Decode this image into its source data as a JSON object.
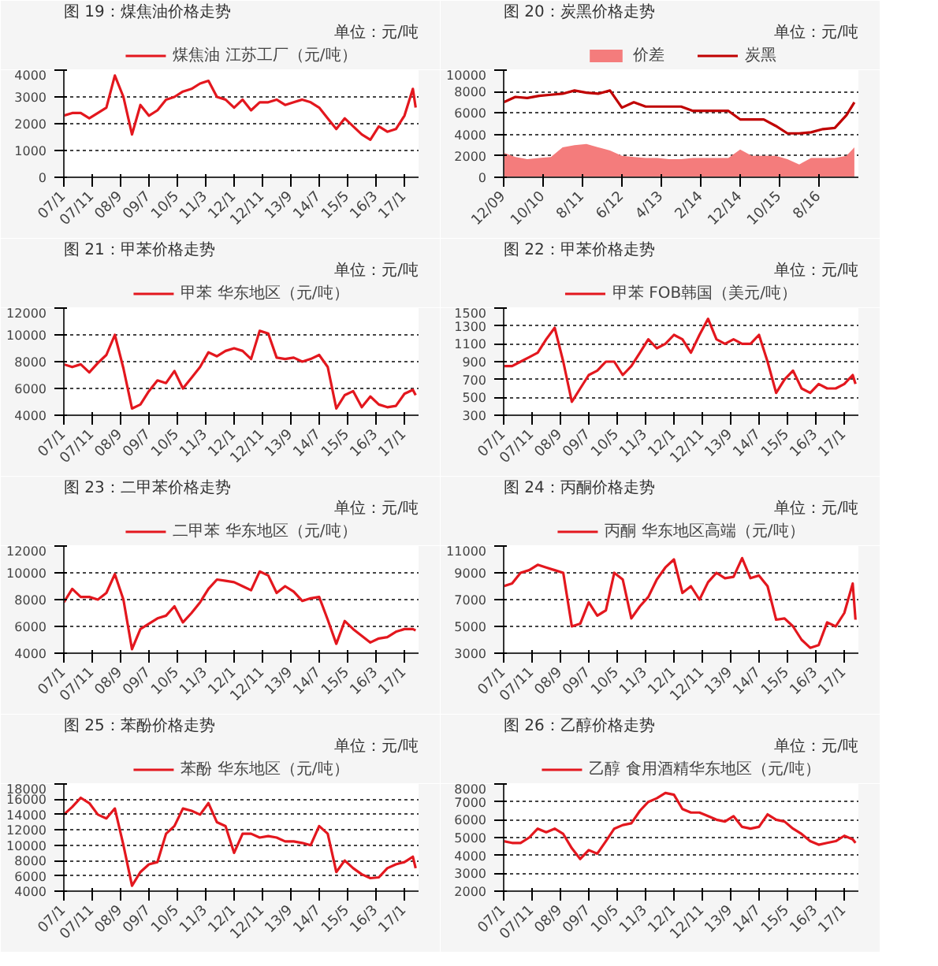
{
  "chart_data": [
    {
      "type": "line",
      "title": "图 19：煤焦油价格走势",
      "subtitle": "单位：元/吨",
      "legend": "top",
      "grid": "y",
      "x": [
        "2007-01",
        "2007-04",
        "2007-07",
        "2007-10",
        "2008-01",
        "2008-04",
        "2008-07",
        "2008-10",
        "2009-01",
        "2009-04",
        "2009-07",
        "2009-10",
        "2010-01",
        "2010-04",
        "2010-07",
        "2010-10",
        "2011-01",
        "2011-04",
        "2011-07",
        "2011-10",
        "2012-01",
        "2012-04",
        "2012-07",
        "2012-10",
        "2013-01",
        "2013-04",
        "2013-07",
        "2013-10",
        "2014-01",
        "2014-04",
        "2014-07",
        "2014-10",
        "2015-01",
        "2015-04",
        "2015-07",
        "2015-10",
        "2016-01",
        "2016-04",
        "2016-07",
        "2016-10",
        "2017-01",
        "2017-04",
        "2017-05"
      ],
      "xlim": [
        "2007-01",
        "2017-06"
      ],
      "xticks": [
        {
          "value": "2007-01",
          "label": "07/1"
        },
        {
          "value": "2007-11",
          "label": "07/11"
        },
        {
          "value": "2008-09",
          "label": "08/9"
        },
        {
          "value": "2009-07",
          "label": "09/7"
        },
        {
          "value": "2010-05",
          "label": "10/5"
        },
        {
          "value": "2011-03",
          "label": "11/3"
        },
        {
          "value": "2012-01",
          "label": "12/1"
        },
        {
          "value": "2012-11",
          "label": "12/11"
        },
        {
          "value": "2013-09",
          "label": "13/9"
        },
        {
          "value": "2014-07",
          "label": "14/7"
        },
        {
          "value": "2015-05",
          "label": "15/5"
        },
        {
          "value": "2016-03",
          "label": "16/3"
        },
        {
          "value": "2017-01",
          "label": "17/1"
        }
      ],
      "ylim": [
        0,
        4000
      ],
      "yticks": [
        0,
        1000,
        2000,
        3000,
        4000
      ],
      "series": [
        {
          "name": "煤焦油 江苏工厂（元/吨）",
          "color": "#e3171e",
          "values": [
            2300,
            2400,
            2400,
            2200,
            2400,
            2600,
            3800,
            3000,
            1600,
            2700,
            2300,
            2500,
            2900,
            3000,
            3200,
            3300,
            3500,
            3600,
            3000,
            2900,
            2600,
            2900,
            2500,
            2800,
            2800,
            2900,
            2700,
            2800,
            2900,
            2800,
            2600,
            2200,
            1800,
            2200,
            1900,
            1600,
            1400,
            1900,
            1700,
            1800,
            2300,
            3300,
            2600
          ]
        }
      ]
    },
    {
      "type": "line",
      "title": "图 20：炭黑价格走势",
      "subtitle": "单位：元/吨",
      "legend": "top",
      "grid": "y",
      "x": [
        "2009-12",
        "2010-03",
        "2010-06",
        "2010-09",
        "2010-12",
        "2011-03",
        "2011-06",
        "2011-09",
        "2011-12",
        "2012-03",
        "2012-06",
        "2012-09",
        "2012-12",
        "2013-03",
        "2013-06",
        "2013-09",
        "2013-12",
        "2014-03",
        "2014-06",
        "2014-09",
        "2014-12",
        "2015-03",
        "2015-06",
        "2015-09",
        "2015-12",
        "2016-03",
        "2016-06",
        "2016-09",
        "2016-12",
        "2017-03",
        "2017-05"
      ],
      "xlim": [
        "2009-12",
        "2017-06"
      ],
      "xticks": [
        {
          "value": "2009-12",
          "label": "12/09"
        },
        {
          "value": "2010-10",
          "label": "10/10"
        },
        {
          "value": "2011-08",
          "label": "8/11"
        },
        {
          "value": "2012-06",
          "label": "6/12"
        },
        {
          "value": "2013-04",
          "label": "4/13"
        },
        {
          "value": "2014-02",
          "label": "2/14"
        },
        {
          "value": "2014-12",
          "label": "12/14"
        },
        {
          "value": "2015-10",
          "label": "10/15"
        },
        {
          "value": "2016-08",
          "label": "8/16"
        }
      ],
      "ylim": [
        0,
        10000
      ],
      "yticks": [
        0,
        2000,
        4000,
        6000,
        8000,
        10000
      ],
      "series": [
        {
          "name": "价差",
          "type": "area",
          "color": "#f47c7c",
          "values": [
            2300,
            1900,
            1700,
            1800,
            1900,
            2800,
            3000,
            3100,
            2800,
            2500,
            2000,
            1900,
            1800,
            1800,
            1700,
            1700,
            1800,
            1800,
            1800,
            1800,
            2600,
            2000,
            2000,
            2000,
            1700,
            1200,
            1800,
            1800,
            1800,
            2000,
            2800
          ]
        },
        {
          "name": "炭黑",
          "type": "line",
          "color": "#c00000",
          "values": [
            7000,
            7500,
            7400,
            7600,
            7700,
            7800,
            8100,
            7900,
            7800,
            8100,
            6500,
            7000,
            6600,
            6600,
            6600,
            6600,
            6200,
            6200,
            6200,
            6200,
            5400,
            5400,
            5400,
            4800,
            4100,
            4100,
            4200,
            4500,
            4600,
            5800,
            7000
          ]
        }
      ]
    },
    {
      "type": "line",
      "title": "图 21：甲苯价格走势",
      "subtitle": "单位：元/吨",
      "legend": "top",
      "grid": "y",
      "x": [
        "2007-01",
        "2007-04",
        "2007-07",
        "2007-10",
        "2008-01",
        "2008-04",
        "2008-07",
        "2008-10",
        "2009-01",
        "2009-04",
        "2009-07",
        "2009-10",
        "2010-01",
        "2010-04",
        "2010-07",
        "2010-10",
        "2011-01",
        "2011-04",
        "2011-07",
        "2011-10",
        "2012-01",
        "2012-04",
        "2012-07",
        "2012-10",
        "2013-01",
        "2013-04",
        "2013-07",
        "2013-10",
        "2014-01",
        "2014-04",
        "2014-07",
        "2014-10",
        "2015-01",
        "2015-04",
        "2015-07",
        "2015-10",
        "2016-01",
        "2016-04",
        "2016-07",
        "2016-10",
        "2017-01",
        "2017-04",
        "2017-05"
      ],
      "xlim": [
        "2007-01",
        "2017-06"
      ],
      "xticks": [
        {
          "value": "2007-01",
          "label": "07/1"
        },
        {
          "value": "2007-11",
          "label": "07/11"
        },
        {
          "value": "2008-09",
          "label": "08/9"
        },
        {
          "value": "2009-07",
          "label": "09/7"
        },
        {
          "value": "2010-05",
          "label": "10/5"
        },
        {
          "value": "2011-03",
          "label": "11/3"
        },
        {
          "value": "2012-01",
          "label": "12/1"
        },
        {
          "value": "2012-11",
          "label": "12/11"
        },
        {
          "value": "2013-09",
          "label": "13/9"
        },
        {
          "value": "2014-07",
          "label": "14/7"
        },
        {
          "value": "2015-05",
          "label": "15/5"
        },
        {
          "value": "2016-03",
          "label": "16/3"
        },
        {
          "value": "2017-01",
          "label": "17/1"
        }
      ],
      "ylim": [
        4000,
        12000
      ],
      "yticks": [
        4000,
        6000,
        8000,
        10000,
        12000
      ],
      "series": [
        {
          "name": "甲苯 华东地区（元/吨）",
          "color": "#e3171e",
          "values": [
            7800,
            7600,
            7800,
            7200,
            7900,
            8500,
            10000,
            7500,
            4500,
            4800,
            5800,
            6600,
            6400,
            7300,
            6000,
            6800,
            7600,
            8700,
            8400,
            8800,
            9000,
            8800,
            8200,
            10300,
            10100,
            8300,
            8200,
            8300,
            8000,
            8200,
            8500,
            7600,
            4500,
            5500,
            5800,
            4600,
            5400,
            4800,
            4600,
            4700,
            5600,
            5900,
            5500
          ]
        }
      ]
    },
    {
      "type": "line",
      "title": "图 22：甲苯价格走势",
      "subtitle": "单位：元/吨",
      "legend": "top",
      "grid": "y",
      "x": [
        "2007-01",
        "2007-04",
        "2007-07",
        "2007-10",
        "2008-01",
        "2008-04",
        "2008-07",
        "2008-10",
        "2009-01",
        "2009-04",
        "2009-07",
        "2009-10",
        "2010-01",
        "2010-04",
        "2010-07",
        "2010-10",
        "2011-01",
        "2011-04",
        "2011-07",
        "2011-10",
        "2012-01",
        "2012-04",
        "2012-07",
        "2012-10",
        "2013-01",
        "2013-04",
        "2013-07",
        "2013-10",
        "2014-01",
        "2014-04",
        "2014-07",
        "2014-10",
        "2015-01",
        "2015-04",
        "2015-07",
        "2015-10",
        "2016-01",
        "2016-04",
        "2016-07",
        "2016-10",
        "2017-01",
        "2017-04",
        "2017-05"
      ],
      "xlim": [
        "2007-01",
        "2017-06"
      ],
      "xticks": [
        {
          "value": "2007-01",
          "label": "07/1"
        },
        {
          "value": "2007-11",
          "label": "07/11"
        },
        {
          "value": "2008-09",
          "label": "08/9"
        },
        {
          "value": "2009-07",
          "label": "09/7"
        },
        {
          "value": "2010-05",
          "label": "10/5"
        },
        {
          "value": "2011-03",
          "label": "11/3"
        },
        {
          "value": "2012-01",
          "label": "12/1"
        },
        {
          "value": "2012-11",
          "label": "12/11"
        },
        {
          "value": "2013-09",
          "label": "13/9"
        },
        {
          "value": "2014-07",
          "label": "14/7"
        },
        {
          "value": "2015-05",
          "label": "15/5"
        },
        {
          "value": "2016-03",
          "label": "16/3"
        },
        {
          "value": "2017-01",
          "label": "17/1"
        }
      ],
      "ylim": [
        300,
        1500
      ],
      "yticks": [
        300,
        500,
        700,
        900,
        1100,
        1300,
        1500
      ],
      "series": [
        {
          "name": "甲苯 FOB韩国（美元/吨）",
          "color": "#e3171e",
          "values": [
            850,
            850,
            900,
            950,
            1000,
            1150,
            1280,
            900,
            450,
            600,
            750,
            800,
            900,
            900,
            750,
            850,
            1000,
            1150,
            1050,
            1100,
            1200,
            1150,
            1000,
            1200,
            1380,
            1150,
            1100,
            1150,
            1100,
            1100,
            1200,
            900,
            550,
            700,
            800,
            600,
            550,
            650,
            600,
            600,
            650,
            750,
            650
          ]
        }
      ]
    },
    {
      "type": "line",
      "title": "图 23：二甲苯价格走势",
      "subtitle": "单位：元/吨",
      "legend": "top",
      "grid": "y",
      "x": [
        "2007-01",
        "2007-04",
        "2007-07",
        "2007-10",
        "2008-01",
        "2008-04",
        "2008-07",
        "2008-10",
        "2009-01",
        "2009-04",
        "2009-07",
        "2009-10",
        "2010-01",
        "2010-04",
        "2010-07",
        "2010-10",
        "2011-01",
        "2011-04",
        "2011-07",
        "2011-10",
        "2012-01",
        "2012-04",
        "2012-07",
        "2012-10",
        "2013-01",
        "2013-04",
        "2013-07",
        "2013-10",
        "2014-01",
        "2014-04",
        "2014-07",
        "2014-10",
        "2015-01",
        "2015-04",
        "2015-07",
        "2015-10",
        "2016-01",
        "2016-04",
        "2016-07",
        "2016-10",
        "2017-01",
        "2017-04",
        "2017-05"
      ],
      "xlim": [
        "2007-01",
        "2017-06"
      ],
      "xticks": [
        {
          "value": "2007-01",
          "label": "07/1"
        },
        {
          "value": "2007-11",
          "label": "07/11"
        },
        {
          "value": "2008-09",
          "label": "08/9"
        },
        {
          "value": "2009-07",
          "label": "09/7"
        },
        {
          "value": "2010-05",
          "label": "10/5"
        },
        {
          "value": "2011-03",
          "label": "11/3"
        },
        {
          "value": "2012-01",
          "label": "12/1"
        },
        {
          "value": "2012-11",
          "label": "12/11"
        },
        {
          "value": "2013-09",
          "label": "13/9"
        },
        {
          "value": "2014-07",
          "label": "14/7"
        },
        {
          "value": "2015-05",
          "label": "15/5"
        },
        {
          "value": "2016-03",
          "label": "16/3"
        },
        {
          "value": "2017-01",
          "label": "17/1"
        }
      ],
      "ylim": [
        4000,
        12000
      ],
      "yticks": [
        4000,
        6000,
        8000,
        10000,
        12000
      ],
      "series": [
        {
          "name": "二甲苯 华东地区（元/吨）",
          "color": "#e3171e",
          "values": [
            7800,
            8800,
            8200,
            8200,
            8000,
            8500,
            9900,
            8000,
            4300,
            5800,
            6200,
            6600,
            6800,
            7500,
            6300,
            7000,
            7800,
            8800,
            9500,
            9400,
            9300,
            9000,
            8700,
            10100,
            9800,
            8500,
            9000,
            8600,
            7900,
            8100,
            8200,
            6500,
            4700,
            6400,
            5800,
            5300,
            4800,
            5100,
            5200,
            5600,
            5800,
            5800,
            5700
          ]
        }
      ]
    },
    {
      "type": "line",
      "title": "图 24：丙酮价格走势",
      "subtitle": "单位：元/吨",
      "legend": "top",
      "grid": "y",
      "x": [
        "2007-01",
        "2007-04",
        "2007-07",
        "2007-10",
        "2008-01",
        "2008-04",
        "2008-07",
        "2008-10",
        "2009-01",
        "2009-04",
        "2009-07",
        "2009-10",
        "2010-01",
        "2010-04",
        "2010-07",
        "2010-10",
        "2011-01",
        "2011-04",
        "2011-07",
        "2011-10",
        "2012-01",
        "2012-04",
        "2012-07",
        "2012-10",
        "2013-01",
        "2013-04",
        "2013-07",
        "2013-10",
        "2014-01",
        "2014-04",
        "2014-07",
        "2014-10",
        "2015-01",
        "2015-04",
        "2015-07",
        "2015-10",
        "2016-01",
        "2016-04",
        "2016-07",
        "2016-10",
        "2017-01",
        "2017-04",
        "2017-05"
      ],
      "xlim": [
        "2007-01",
        "2017-06"
      ],
      "xticks": [
        {
          "value": "2007-01",
          "label": "07/1"
        },
        {
          "value": "2007-11",
          "label": "07/11"
        },
        {
          "value": "2008-09",
          "label": "08/9"
        },
        {
          "value": "2009-07",
          "label": "09/7"
        },
        {
          "value": "2010-05",
          "label": "10/5"
        },
        {
          "value": "2011-03",
          "label": "11/3"
        },
        {
          "value": "2012-01",
          "label": "12/1"
        },
        {
          "value": "2012-11",
          "label": "12/11"
        },
        {
          "value": "2013-09",
          "label": "13/9"
        },
        {
          "value": "2014-07",
          "label": "14/7"
        },
        {
          "value": "2015-05",
          "label": "15/5"
        },
        {
          "value": "2016-03",
          "label": "16/3"
        },
        {
          "value": "2017-01",
          "label": "17/1"
        }
      ],
      "ylim": [
        3000,
        11000
      ],
      "yticks": [
        3000,
        5000,
        7000,
        9000,
        11000
      ],
      "series": [
        {
          "name": "丙酮 华东地区高端（元/吨）",
          "color": "#e3171e",
          "values": [
            8000,
            8200,
            9000,
            9200,
            9600,
            9400,
            9200,
            9000,
            5000,
            5200,
            6800,
            5800,
            6200,
            9000,
            8500,
            5600,
            6500,
            7200,
            8500,
            9400,
            10000,
            7500,
            8000,
            7000,
            8300,
            9000,
            8600,
            8700,
            10100,
            8600,
            8800,
            8000,
            5500,
            5600,
            5000,
            4000,
            3400,
            3600,
            5300,
            5000,
            6000,
            8200,
            5500
          ]
        }
      ]
    },
    {
      "type": "line",
      "title": "图 25：苯酚价格走势",
      "subtitle": "单位：元/吨",
      "legend": "top",
      "grid": "y",
      "x": [
        "2007-01",
        "2007-04",
        "2007-07",
        "2007-10",
        "2008-01",
        "2008-04",
        "2008-07",
        "2008-10",
        "2009-01",
        "2009-04",
        "2009-07",
        "2009-10",
        "2010-01",
        "2010-04",
        "2010-07",
        "2010-10",
        "2011-01",
        "2011-04",
        "2011-07",
        "2011-10",
        "2012-01",
        "2012-04",
        "2012-07",
        "2012-10",
        "2013-01",
        "2013-04",
        "2013-07",
        "2013-10",
        "2014-01",
        "2014-04",
        "2014-07",
        "2014-10",
        "2015-01",
        "2015-04",
        "2015-07",
        "2015-10",
        "2016-01",
        "2016-04",
        "2016-07",
        "2016-10",
        "2017-01",
        "2017-04",
        "2017-05"
      ],
      "xlim": [
        "2007-01",
        "2017-06"
      ],
      "xticks": [
        {
          "value": "2007-01",
          "label": "07/1"
        },
        {
          "value": "2007-11",
          "label": "07/11"
        },
        {
          "value": "2008-09",
          "label": "08/9"
        },
        {
          "value": "2009-07",
          "label": "09/7"
        },
        {
          "value": "2010-05",
          "label": "10/5"
        },
        {
          "value": "2011-03",
          "label": "11/3"
        },
        {
          "value": "2012-01",
          "label": "12/1"
        },
        {
          "value": "2012-11",
          "label": "12/11"
        },
        {
          "value": "2013-09",
          "label": "13/9"
        },
        {
          "value": "2014-07",
          "label": "14/7"
        },
        {
          "value": "2015-05",
          "label": "15/5"
        },
        {
          "value": "2016-03",
          "label": "16/3"
        },
        {
          "value": "2017-01",
          "label": "17/1"
        }
      ],
      "ylim": [
        4000,
        18000
      ],
      "yticks": [
        4000,
        6000,
        8000,
        10000,
        12000,
        14000,
        16000,
        18000
      ],
      "series": [
        {
          "name": "苯酚 华东地区（元/吨）",
          "color": "#e3171e",
          "values": [
            14000,
            15000,
            16200,
            15500,
            14000,
            13500,
            14800,
            10000,
            4700,
            6500,
            7500,
            7800,
            11500,
            12500,
            14800,
            14500,
            14000,
            15500,
            13000,
            12500,
            9000,
            11500,
            11500,
            11000,
            11200,
            11000,
            10500,
            10500,
            10300,
            10000,
            12500,
            11500,
            6500,
            8000,
            7000,
            6200,
            5700,
            5800,
            7000,
            7500,
            7800,
            8500,
            7000
          ]
        }
      ]
    },
    {
      "type": "line",
      "title": "图 26：乙醇价格走势",
      "subtitle": "单位：元/吨",
      "legend": "top",
      "grid": "y",
      "x": [
        "2007-01",
        "2007-04",
        "2007-07",
        "2007-10",
        "2008-01",
        "2008-04",
        "2008-07",
        "2008-10",
        "2009-01",
        "2009-04",
        "2009-07",
        "2009-10",
        "2010-01",
        "2010-04",
        "2010-07",
        "2010-10",
        "2011-01",
        "2011-04",
        "2011-07",
        "2011-10",
        "2012-01",
        "2012-04",
        "2012-07",
        "2012-10",
        "2013-01",
        "2013-04",
        "2013-07",
        "2013-10",
        "2014-01",
        "2014-04",
        "2014-07",
        "2014-10",
        "2015-01",
        "2015-04",
        "2015-07",
        "2015-10",
        "2016-01",
        "2016-04",
        "2016-07",
        "2016-10",
        "2017-01",
        "2017-04",
        "2017-05"
      ],
      "xlim": [
        "2007-01",
        "2017-06"
      ],
      "xticks": [
        {
          "value": "2007-01",
          "label": "07/1"
        },
        {
          "value": "2007-11",
          "label": "07/11"
        },
        {
          "value": "2008-09",
          "label": "08/9"
        },
        {
          "value": "2009-07",
          "label": "09/7"
        },
        {
          "value": "2010-05",
          "label": "10/5"
        },
        {
          "value": "2011-03",
          "label": "11/3"
        },
        {
          "value": "2012-01",
          "label": "12/1"
        },
        {
          "value": "2012-11",
          "label": "12/11"
        },
        {
          "value": "2013-09",
          "label": "13/9"
        },
        {
          "value": "2014-07",
          "label": "14/7"
        },
        {
          "value": "2015-05",
          "label": "15/5"
        },
        {
          "value": "2016-03",
          "label": "16/3"
        },
        {
          "value": "2017-01",
          "label": "17/1"
        }
      ],
      "ylim": [
        2000,
        8000
      ],
      "yticks": [
        2000,
        3000,
        4000,
        5000,
        6000,
        7000,
        8000
      ],
      "series": [
        {
          "name": "乙醇 食用酒精华东地区（元/吨）",
          "color": "#e3171e",
          "values": [
            4800,
            4700,
            4700,
            5000,
            5500,
            5300,
            5500,
            5200,
            4400,
            3800,
            4300,
            4100,
            4800,
            5500,
            5700,
            5800,
            6500,
            7000,
            7200,
            7500,
            7400,
            6600,
            6400,
            6400,
            6200,
            6000,
            5900,
            6200,
            5600,
            5500,
            5600,
            6300,
            6000,
            5900,
            5500,
            5200,
            4800,
            4600,
            4700,
            4800,
            5100,
            4900,
            4700
          ]
        }
      ]
    }
  ]
}
